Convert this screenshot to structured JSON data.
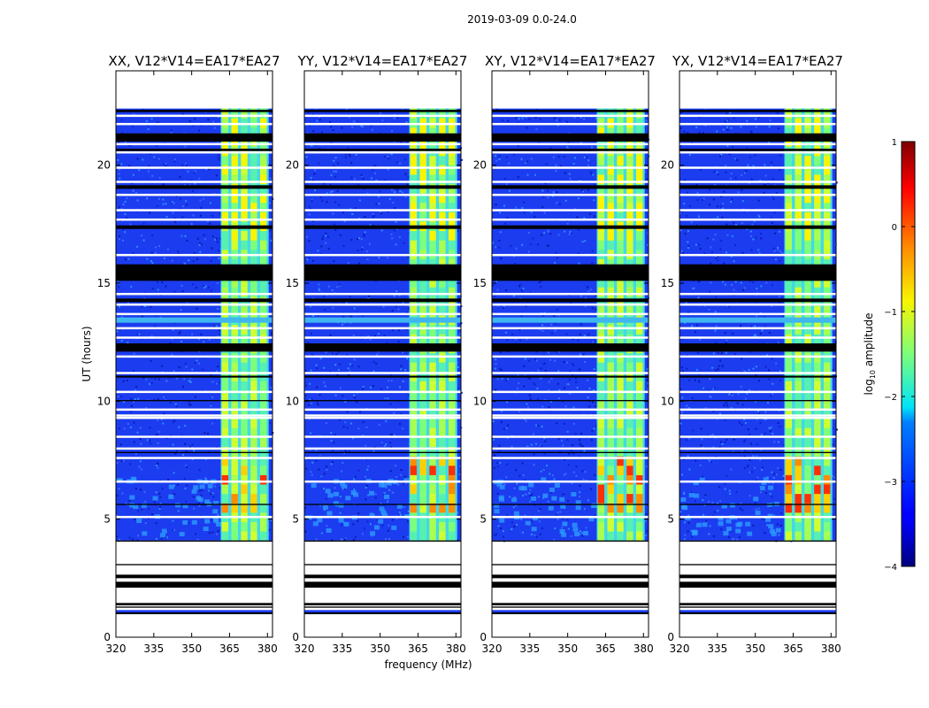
{
  "chart_data": {
    "type": "heatmap",
    "title": "2019-03-09 0.0-24.0",
    "xlabel": "frequency (MHz)",
    "ylabel": "UT (hours)",
    "xlim": [
      320,
      382
    ],
    "ylim": [
      0,
      24
    ],
    "xticks": [
      "320",
      "335",
      "350",
      "365",
      "380"
    ],
    "yticks": [
      "0",
      "5",
      "10",
      "15",
      "20"
    ],
    "data_time_range_hours": [
      4.1,
      22.4
    ],
    "rfi_band_mhz": [
      361.5,
      380.5
    ],
    "colormap": "jet",
    "panels": [
      {
        "title": "XX, V12*V14=EA17*EA27"
      },
      {
        "title": "YY, V12*V14=EA17*EA27"
      },
      {
        "title": "XY, V12*V14=EA17*EA27"
      },
      {
        "title": "YX, V12*V14=EA17*EA27"
      }
    ],
    "colorbar": {
      "label": "log10 amplitude",
      "min": -4,
      "max": 1,
      "ticks": [
        "1",
        "0",
        "−1",
        "−2",
        "−3",
        "−4"
      ]
    }
  }
}
